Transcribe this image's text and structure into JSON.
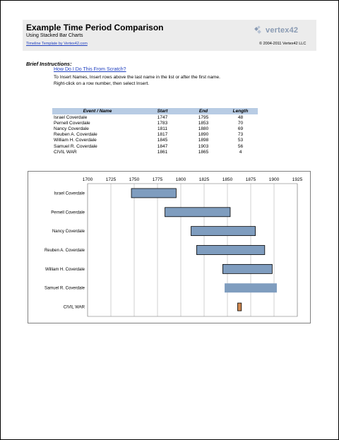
{
  "header": {
    "title": "Example Time Period Comparison",
    "subtitle": "Using Stacked Bar Charts",
    "template_link": "Timeline Template by Vertex42.com",
    "logo_text": "vertex42",
    "copyright": "© 2004-2011 Vertex42 LLC",
    "background": "#ececec"
  },
  "instructions": {
    "heading": "Brief Instructions:",
    "howto_link": "How Do I Do This From Scratch?",
    "line1": "To Insert Names, Insert rows above the last name in the list or after the first name.",
    "line2": "Right-click on a row number, then select Insert."
  },
  "table": {
    "headers": {
      "name": "Event / Name",
      "start": "Start",
      "end": "End",
      "length": "Length"
    },
    "header_color": "#b8cce4",
    "rows": [
      {
        "name": "Israel Coverdale",
        "start": "1747",
        "end": "1795",
        "length": "48"
      },
      {
        "name": "Pernell Coverdale",
        "start": "1783",
        "end": "1853",
        "length": "70"
      },
      {
        "name": "Nancy Coverdale",
        "start": "1811",
        "end": "1880",
        "length": "69"
      },
      {
        "name": "Reuben A. Coverdale",
        "start": "1817",
        "end": "1890",
        "length": "73"
      },
      {
        "name": "William H. Coverdale",
        "start": "1845",
        "end": "1898",
        "length": "53"
      },
      {
        "name": "Samuel R. Coverdale",
        "start": "1847",
        "end": "1903",
        "length": "56"
      },
      {
        "name": "CIVIL WAR",
        "start": "1861",
        "end": "1865",
        "length": "4"
      }
    ]
  },
  "chart_data": {
    "type": "bar",
    "orientation": "horizontal",
    "stacked": true,
    "xlim": [
      1700,
      1925
    ],
    "xticks": [
      1700,
      1725,
      1750,
      1775,
      1800,
      1825,
      1850,
      1875,
      1900,
      1925
    ],
    "grid": true,
    "categories": [
      "Israel Coverdale",
      "Pernell Coverdale",
      "Nancy Coverdale",
      "Reuben A. Coverdale",
      "William H. Coverdale",
      "Samuel R. Coverdale",
      "CIVIL WAR"
    ],
    "starts": [
      1747,
      1783,
      1811,
      1817,
      1845,
      1847,
      1861
    ],
    "lengths": [
      48,
      70,
      69,
      73,
      53,
      56,
      4
    ],
    "bar_styles": [
      "outlined",
      "outlined",
      "outlined",
      "outlined",
      "outlined",
      "plain",
      "highlight"
    ],
    "colors": {
      "bar": "#7f9dbf",
      "plain": "#7f9dbf",
      "highlight": "#d08850",
      "grid": "#bfbfbf"
    }
  }
}
